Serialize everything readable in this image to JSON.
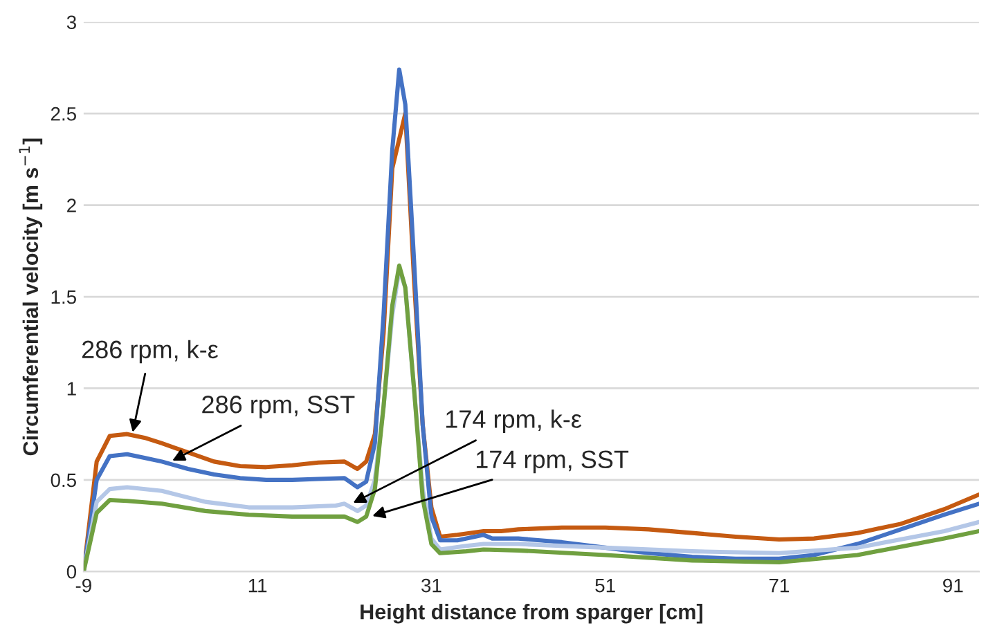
{
  "chart_data": {
    "type": "line",
    "xlabel": "Height distance from sparger [cm]",
    "ylabel": "Circumferential velocity [m s$^{−1}$]",
    "xlim": [
      -9,
      94
    ],
    "xticks": [
      -9,
      11,
      31,
      51,
      71,
      91
    ],
    "ylim": [
      0,
      3
    ],
    "yticks": [
      0,
      0.5,
      1,
      1.5,
      2,
      2.5,
      3
    ],
    "grid": "y",
    "legend": false,
    "marker": "none",
    "line_style": "solid",
    "series": [
      {
        "color": "#c55a11",
        "x": [
          -9,
          -7.5,
          -6,
          -4,
          -2,
          0,
          3,
          6,
          9,
          12,
          15,
          18,
          21,
          22.5,
          23.5,
          24.5,
          25.5,
          26.5,
          28,
          29,
          30,
          31,
          32,
          34,
          37,
          39,
          41,
          46,
          51,
          56,
          61,
          66,
          71,
          75,
          80,
          85,
          90,
          94
        ],
        "values": [
          0,
          0.6,
          0.74,
          0.75,
          0.73,
          0.7,
          0.65,
          0.6,
          0.575,
          0.57,
          0.58,
          0.595,
          0.6,
          0.56,
          0.6,
          0.75,
          1.3,
          2.2,
          2.5,
          1.6,
          0.8,
          0.35,
          0.19,
          0.2,
          0.22,
          0.22,
          0.23,
          0.24,
          0.24,
          0.23,
          0.21,
          0.19,
          0.175,
          0.18,
          0.21,
          0.26,
          0.34,
          0.42
        ]
      },
      {
        "color": "#4472c4",
        "x": [
          -9,
          -7.5,
          -6,
          -4,
          -2,
          0,
          3,
          6,
          9,
          12,
          15,
          18,
          21,
          22.5,
          23.5,
          24.5,
          25.5,
          26.5,
          27.3,
          28,
          29,
          30,
          31,
          32,
          34,
          36,
          37,
          38,
          41,
          46,
          51,
          56,
          61,
          66,
          71,
          75,
          80,
          85,
          90,
          94
        ],
        "values": [
          0,
          0.5,
          0.63,
          0.64,
          0.62,
          0.6,
          0.56,
          0.53,
          0.51,
          0.5,
          0.5,
          0.505,
          0.51,
          0.46,
          0.49,
          0.7,
          1.4,
          2.3,
          2.74,
          2.55,
          1.7,
          0.8,
          0.3,
          0.17,
          0.17,
          0.19,
          0.2,
          0.18,
          0.18,
          0.16,
          0.13,
          0.1,
          0.08,
          0.07,
          0.07,
          0.09,
          0.15,
          0.23,
          0.31,
          0.37
        ]
      },
      {
        "color": "#b4c7e7",
        "x": [
          -9,
          -7.5,
          -6,
          -4,
          0,
          5,
          10,
          15,
          20,
          21,
          22.5,
          23.5,
          24.5,
          25.5,
          26.5,
          27.3,
          28,
          29,
          30,
          31,
          32,
          35,
          37,
          41,
          51,
          61,
          71,
          80,
          90,
          94
        ],
        "values": [
          0,
          0.38,
          0.45,
          0.46,
          0.44,
          0.38,
          0.35,
          0.35,
          0.36,
          0.37,
          0.33,
          0.36,
          0.5,
          0.9,
          1.4,
          1.65,
          1.55,
          1.0,
          0.45,
          0.18,
          0.12,
          0.14,
          0.15,
          0.15,
          0.13,
          0.11,
          0.1,
          0.13,
          0.22,
          0.27
        ]
      },
      {
        "color": "#70a040",
        "x": [
          -9,
          -7.5,
          -6,
          -4,
          0,
          5,
          10,
          15,
          20,
          21,
          22.5,
          23.5,
          24.5,
          25.5,
          26.5,
          27.3,
          28,
          29,
          30,
          31,
          32,
          35,
          37,
          41,
          51,
          61,
          71,
          80,
          90,
          94
        ],
        "values": [
          0,
          0.32,
          0.39,
          0.385,
          0.37,
          0.33,
          0.31,
          0.3,
          0.3,
          0.3,
          0.27,
          0.3,
          0.45,
          0.9,
          1.45,
          1.67,
          1.55,
          1.0,
          0.4,
          0.15,
          0.1,
          0.11,
          0.12,
          0.115,
          0.09,
          0.06,
          0.05,
          0.09,
          0.18,
          0.22
        ]
      }
    ],
    "annotations": [
      {
        "text": "286 rpm, k-ε",
        "x": -3.4,
        "y": 0.75
      },
      {
        "text": "286 rpm, SST",
        "x": 1.0,
        "y": 0.6
      },
      {
        "text": "174 rpm, k-ε",
        "x": 21.8,
        "y": 0.37
      },
      {
        "text": "174 rpm, SST",
        "x": 24,
        "y": 0.3
      }
    ]
  }
}
